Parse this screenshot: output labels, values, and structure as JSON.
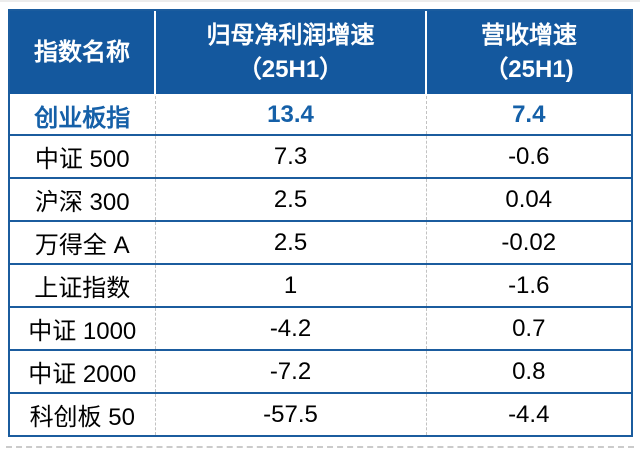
{
  "colors": {
    "header_background": "#14589e",
    "header_text": "#ffffff",
    "highlight_text": "#1560a8",
    "body_text": "#000000",
    "row_divider": "#1b5c9e",
    "column_divider_body": "#c2c2c2",
    "column_divider_header": "#ffffff"
  },
  "chart_data": {
    "type": "table",
    "header": {
      "col1": {
        "line1": "指数名称",
        "line2": ""
      },
      "col2": {
        "line1": "归母净利润增速",
        "line2": "（25H1）"
      },
      "col3": {
        "line1": "营收增速",
        "line2": "（25H1)"
      }
    },
    "columns_flat": [
      "指数名称",
      "归母净利润增速（25H1）",
      "营收增速（25H1)"
    ],
    "rows": [
      {
        "index_name": "创业板指",
        "net_profit_growth_25h1": "13.4",
        "revenue_growth_25h1": "7.4",
        "highlight": true
      },
      {
        "index_name": "中证 500",
        "net_profit_growth_25h1": "7.3",
        "revenue_growth_25h1": "-0.6",
        "highlight": false
      },
      {
        "index_name": "沪深 300",
        "net_profit_growth_25h1": "2.5",
        "revenue_growth_25h1": "0.04",
        "highlight": false
      },
      {
        "index_name": "万得全 A",
        "net_profit_growth_25h1": "2.5",
        "revenue_growth_25h1": "-0.02",
        "highlight": false
      },
      {
        "index_name": "上证指数",
        "net_profit_growth_25h1": "1",
        "revenue_growth_25h1": "-1.6",
        "highlight": false
      },
      {
        "index_name": "中证 1000",
        "net_profit_growth_25h1": "-4.2",
        "revenue_growth_25h1": "0.7",
        "highlight": false
      },
      {
        "index_name": "中证 2000",
        "net_profit_growth_25h1": "-7.2",
        "revenue_growth_25h1": "0.8",
        "highlight": false
      },
      {
        "index_name": "科创板 50",
        "net_profit_growth_25h1": "-57.5",
        "revenue_growth_25h1": "-4.4",
        "highlight": false
      }
    ]
  }
}
